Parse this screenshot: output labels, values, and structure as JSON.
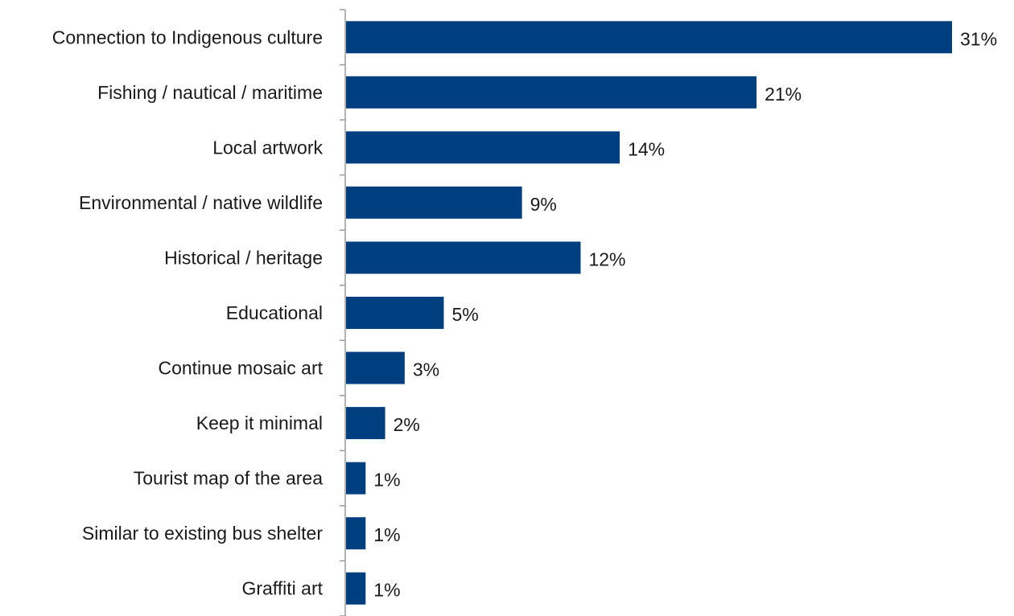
{
  "chart_data": {
    "type": "bar",
    "orientation": "horizontal",
    "title": "",
    "xlabel": "",
    "ylabel": "",
    "categories": [
      "Connection to Indigenous culture",
      "Fishing / nautical / maritime",
      "Local artwork",
      "Environmental / native wildlife",
      "Historical / heritage",
      "Educational",
      "Continue mosaic art",
      "Keep it minimal",
      "Tourist map of the area",
      "Similar to existing bus shelter",
      "Graffiti art"
    ],
    "values": [
      31,
      21,
      14,
      9,
      12,
      5,
      3,
      2,
      1,
      1,
      1
    ],
    "value_labels": [
      "31%",
      "21%",
      "14%",
      "9%",
      "12%",
      "5%",
      "3%",
      "2%",
      "1%",
      "1%",
      "1%"
    ],
    "unit": "%",
    "xlim": [
      0,
      31
    ],
    "grid": false,
    "legend": "none",
    "bar_color": "#003F7F",
    "axis_color": "#9a9a9a"
  }
}
